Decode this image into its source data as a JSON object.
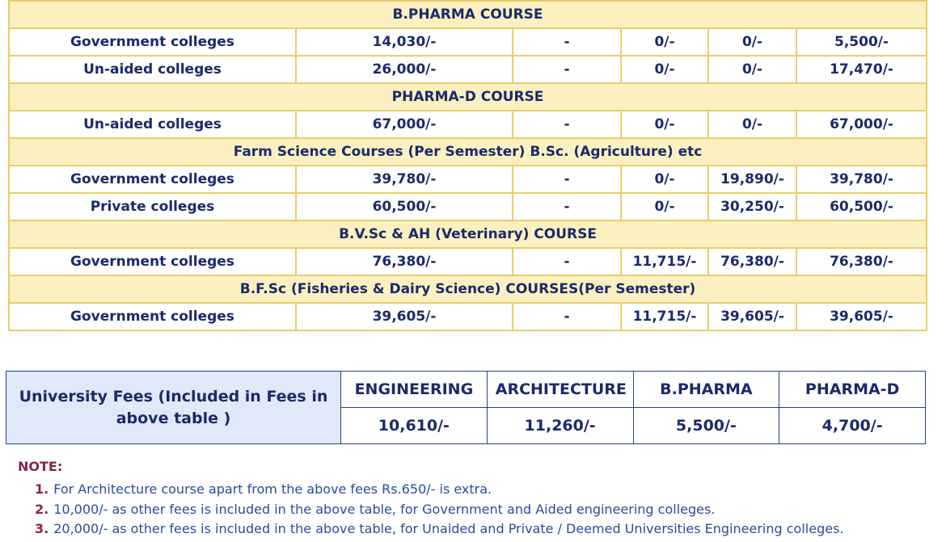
{
  "fee_table": {
    "sections": [
      {
        "title": "B.PHARMA COURSE",
        "rows": [
          [
            "Government colleges",
            "14,030/-",
            "-",
            "0/-",
            "0/-",
            "5,500/-"
          ],
          [
            "Un-aided colleges",
            "26,000/-",
            "-",
            "0/-",
            "0/-",
            "17,470/-"
          ]
        ]
      },
      {
        "title": "PHARMA-D COURSE",
        "rows": [
          [
            "Un-aided colleges",
            "67,000/-",
            "-",
            "0/-",
            "0/-",
            "67,000/-"
          ]
        ]
      },
      {
        "title": "Farm Science Courses (Per Semester) B.Sc. (Agriculture) etc",
        "rows": [
          [
            "Government colleges",
            "39,780/-",
            "-",
            "0/-",
            "19,890/-",
            "39,780/-"
          ],
          [
            "Private colleges",
            "60,500/-",
            "-",
            "0/-",
            "30,250/-",
            "60,500/-"
          ]
        ]
      },
      {
        "title": "B.V.Sc & AH (Veterinary) COURSE",
        "rows": [
          [
            "Government colleges",
            "76,380/-",
            "-",
            "11,715/-",
            "76,380/-",
            "76,380/-"
          ]
        ]
      },
      {
        "title": "B.F.Sc  (Fisheries & Dairy Science) COURSES(Per Semester)",
        "rows": [
          [
            "Government colleges",
            "39,605/-",
            "-",
            "11,715/-",
            "39,605/-",
            "39,605/-"
          ]
        ]
      }
    ]
  },
  "university_fees": {
    "label": "University Fees (Included in Fees in above table )",
    "headers": [
      "ENGINEERING",
      "ARCHITECTURE",
      "B.PHARMA",
      "PHARMA-D"
    ],
    "values": [
      "10,610/-",
      "11,260/-",
      "5,500/-",
      "4,700/-"
    ]
  },
  "notes": {
    "heading": "NOTE:",
    "items": [
      {
        "number": "1.",
        "text": "For Architecture course apart from the above fees Rs.650/- is extra."
      },
      {
        "number": "2.",
        "text": "10,000/- as other fees is included in the above table, for Government and Aided engineering colleges."
      },
      {
        "number": "3.",
        "text": "20,000/- as other fees is included in the above table, for Unaided and Private / Deemed Universities Engineering colleges."
      }
    ]
  }
}
